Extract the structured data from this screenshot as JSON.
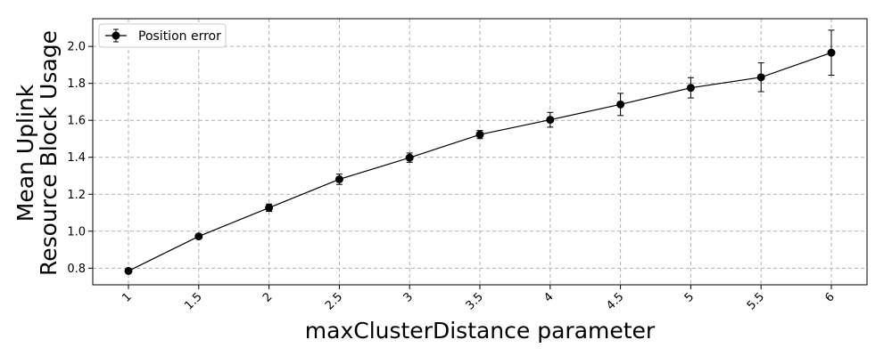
{
  "chart_data": {
    "type": "line",
    "x": [
      "1",
      "1.5",
      "2",
      "2.5",
      "3",
      "3.5",
      "4",
      "4.5",
      "5",
      "5.5",
      "6"
    ],
    "series": [
      {
        "name": "Position error",
        "values": [
          0.785,
          0.972,
          1.127,
          1.281,
          1.398,
          1.523,
          1.603,
          1.686,
          1.776,
          1.833,
          1.966
        ],
        "error": [
          0.01,
          0.012,
          0.02,
          0.028,
          0.025,
          0.022,
          0.04,
          0.06,
          0.055,
          0.078,
          0.122
        ]
      }
    ],
    "xlabel": "maxClusterDistance parameter",
    "ylabel": [
      "Mean Uplink",
      "Resource Block Usage"
    ],
    "ylim": [
      0.71,
      2.15
    ],
    "yticks": [
      "0.8",
      "1.0",
      "1.2",
      "1.4",
      "1.6",
      "1.8",
      "2.0"
    ],
    "grid": true,
    "legend_position": "top-left",
    "colors": {
      "line": "#000000",
      "grid": "#b0b0b0",
      "frame": "#000000"
    }
  }
}
